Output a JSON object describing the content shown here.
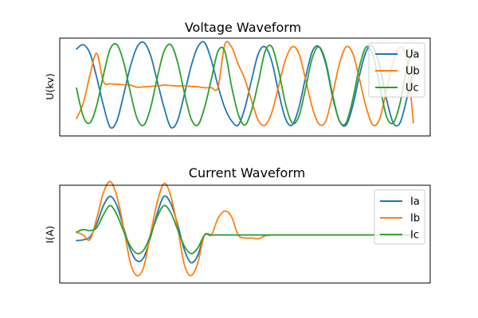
{
  "chart_data": [
    {
      "type": "line",
      "title": "Voltage Waveform",
      "xlabel": "",
      "ylabel": "U(kv)",
      "xticks_visible": false,
      "yticks_visible": false,
      "grid": false,
      "legend": "top-right",
      "xlim": [
        0,
        100
      ],
      "ylim": [
        -1.15,
        1.1
      ],
      "x": [
        0,
        2,
        4,
        6,
        8,
        10,
        12,
        14,
        16,
        18,
        20,
        22,
        24,
        26,
        28,
        30,
        32,
        34,
        36,
        38,
        40,
        42,
        44,
        46,
        48,
        50,
        52,
        54,
        56,
        58,
        60,
        62,
        64,
        66,
        68,
        70,
        72,
        74,
        76,
        78,
        80,
        82,
        84,
        86,
        88,
        90,
        92,
        94,
        96,
        98,
        100
      ],
      "series": [
        {
          "name": "Ua",
          "color": "#1f77b4",
          "values": [
            0.85,
            0.95,
            0.75,
            0.2,
            -0.45,
            -0.95,
            -0.8,
            -0.2,
            0.45,
            0.9,
            1.0,
            0.7,
            0.1,
            -0.5,
            -0.95,
            -0.8,
            -0.2,
            0.45,
            0.9,
            1.0,
            0.6,
            0.0,
            -0.5,
            -0.8,
            -0.9,
            -0.5,
            0.15,
            0.75,
            0.9,
            0.55,
            -0.15,
            -0.75,
            -0.9,
            -0.5,
            0.2,
            0.8,
            0.9,
            0.5,
            -0.25,
            -0.8,
            -0.9,
            -0.45,
            0.25,
            0.8,
            0.9,
            0.45,
            -0.3,
            -0.85,
            -0.85,
            -0.3,
            0.35
          ]
        },
        {
          "name": "Ub",
          "color": "#ff7f0e",
          "values": [
            -0.75,
            -0.4,
            0.25,
            0.75,
            0.1,
            0.05,
            0.04,
            0.03,
            0.02,
            -0.03,
            -0.02,
            -0.01,
            0.0,
            0.02,
            0.01,
            0.0,
            0.0,
            -0.01,
            -0.02,
            -0.04,
            -0.04,
            -0.03,
            0.95,
            0.9,
            0.5,
            0.15,
            -0.35,
            -0.8,
            -0.9,
            -0.6,
            0.0,
            0.6,
            0.9,
            0.75,
            0.15,
            -0.5,
            -0.88,
            -0.8,
            -0.2,
            0.5,
            0.9,
            0.75,
            0.15,
            -0.5,
            -0.9,
            -0.75,
            -0.1,
            0.55,
            0.9,
            0.6,
            -0.85
          ]
        },
        {
          "name": "Uc",
          "color": "#2ca02c",
          "values": [
            -0.05,
            -0.7,
            -0.85,
            -0.45,
            0.25,
            0.85,
            0.95,
            0.55,
            -0.15,
            -0.75,
            -0.9,
            -0.5,
            0.2,
            0.8,
            0.95,
            0.55,
            -0.15,
            -0.75,
            -0.9,
            -0.5,
            0.15,
            0.8,
            0.8,
            0.0,
            -0.65,
            -0.9,
            -0.55,
            0.1,
            0.8,
            0.9,
            0.35,
            -0.4,
            -0.85,
            -0.7,
            -0.05,
            0.65,
            0.9,
            0.55,
            -0.2,
            -0.8,
            -0.85,
            -0.3,
            0.45,
            0.9,
            0.7,
            0.0,
            -0.7,
            -0.85,
            -0.4,
            0.4,
            0.85
          ]
        }
      ]
    },
    {
      "type": "line",
      "title": "Current Waveform",
      "xlabel": "",
      "ylabel": "I(A)",
      "xticks_visible": false,
      "yticks_visible": false,
      "grid": false,
      "legend": "top-right",
      "xlim": [
        0,
        100
      ],
      "ylim": [
        -1.3,
        1.35
      ],
      "x": [
        0,
        2,
        4,
        6,
        8,
        10,
        12,
        14,
        16,
        18,
        20,
        22,
        24,
        26,
        28,
        30,
        32,
        34,
        36,
        38,
        40,
        42,
        44,
        46,
        48,
        50,
        52,
        54,
        56,
        58,
        60,
        62,
        64,
        66,
        68,
        70,
        72,
        74,
        76,
        78,
        80,
        82,
        84,
        86,
        88,
        90,
        92,
        94,
        96,
        98,
        100
      ],
      "series": [
        {
          "name": "Ia",
          "color": "#1f77b4",
          "values": [
            -0.15,
            -0.13,
            -0.05,
            0.3,
            0.8,
            1.05,
            0.8,
            0.2,
            -0.4,
            -0.7,
            -0.6,
            -0.05,
            0.6,
            1.05,
            0.85,
            0.3,
            -0.4,
            -0.75,
            -0.55,
            0.0,
            0.0,
            0.0,
            0.0,
            0.0,
            0.0,
            0.0,
            0.0,
            0.0,
            0.0,
            0.0,
            0.0,
            0.0,
            0.0,
            0.0,
            0.0,
            0.0,
            0.0,
            0.0,
            0.0,
            0.0,
            0.0,
            0.0,
            0.0,
            0.0,
            0.0,
            0.0,
            0.0,
            0.0,
            0.0,
            0.0,
            0.0
          ]
        },
        {
          "name": "Ib",
          "color": "#ff7f0e",
          "values": [
            0.08,
            0.0,
            -0.12,
            0.45,
            1.15,
            1.45,
            1.05,
            0.2,
            -0.75,
            -1.1,
            -0.85,
            0.05,
            0.9,
            1.4,
            1.05,
            0.2,
            -0.8,
            -1.1,
            -0.75,
            0.0,
            0.0,
            0.45,
            0.65,
            0.5,
            0.0,
            -0.08,
            -0.08,
            -0.1,
            -0.02,
            0.0,
            0.0,
            0.0,
            0.0,
            0.0,
            0.0,
            0.0,
            0.0,
            0.0,
            0.0,
            0.0,
            0.0,
            0.0,
            0.0,
            0.0,
            0.0,
            0.0,
            0.0,
            0.0,
            0.0,
            0.0,
            0.0
          ]
        },
        {
          "name": "Ic",
          "color": "#2ca02c",
          "values": [
            0.08,
            0.15,
            0.12,
            0.2,
            0.55,
            0.8,
            0.55,
            0.1,
            -0.3,
            -0.5,
            -0.4,
            0.0,
            0.5,
            0.8,
            0.6,
            0.15,
            -0.3,
            -0.5,
            -0.35,
            0.0,
            0.0,
            0.0,
            0.0,
            0.0,
            0.0,
            0.0,
            0.0,
            0.0,
            0.0,
            0.0,
            0.0,
            0.0,
            0.0,
            0.0,
            0.0,
            0.0,
            0.0,
            0.0,
            0.0,
            0.0,
            0.0,
            0.0,
            0.0,
            0.0,
            0.0,
            0.0,
            0.0,
            0.0,
            0.0,
            0.0,
            0.0
          ]
        }
      ]
    }
  ]
}
